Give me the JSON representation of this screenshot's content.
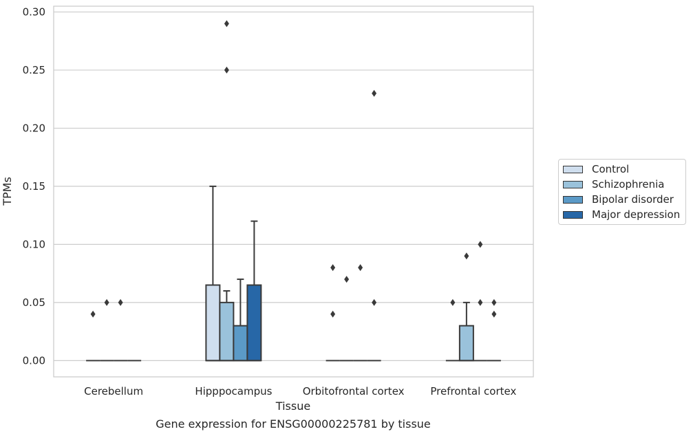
{
  "chart_data": {
    "type": "box",
    "title": "Gene expression for ENSG00000225781 by tissue",
    "xlabel": "Tissue",
    "ylabel": "TPMs",
    "ylim": [
      -0.014,
      0.305
    ],
    "yticks": [
      "0.00",
      "0.05",
      "0.10",
      "0.15",
      "0.20",
      "0.25",
      "0.30"
    ],
    "ytick_values": [
      0,
      0.05,
      0.1,
      0.15,
      0.2,
      0.25,
      0.3
    ],
    "grid": true,
    "legend_position": "right",
    "categories": [
      "Cerebellum",
      "Hipppocampus",
      "Orbitofrontal cortex",
      "Prefrontal cortex"
    ],
    "series": [
      {
        "name": "Control",
        "color": "#cfdeee",
        "boxes": [
          {
            "q1": 0,
            "median": 0,
            "q3": 0,
            "whislo": 0,
            "whishi": 0,
            "fliers": [
              0.04
            ]
          },
          {
            "q1": 0,
            "median": 0,
            "q3": 0.065,
            "whislo": 0,
            "whishi": 0.15,
            "fliers": []
          },
          {
            "q1": 0,
            "median": 0,
            "q3": 0,
            "whislo": 0,
            "whishi": 0,
            "fliers": [
              0.04,
              0.08
            ]
          },
          {
            "q1": 0,
            "median": 0,
            "q3": 0,
            "whislo": 0,
            "whishi": 0,
            "fliers": [
              0.05
            ]
          }
        ]
      },
      {
        "name": "Schizophrenia",
        "color": "#9ac2db",
        "boxes": [
          {
            "q1": 0,
            "median": 0,
            "q3": 0,
            "whislo": 0,
            "whishi": 0,
            "fliers": [
              0.05
            ]
          },
          {
            "q1": 0,
            "median": 0,
            "q3": 0.05,
            "whislo": 0,
            "whishi": 0.06,
            "fliers": [
              0.25,
              0.29
            ]
          },
          {
            "q1": 0,
            "median": 0,
            "q3": 0,
            "whislo": 0,
            "whishi": 0,
            "fliers": [
              0.07
            ]
          },
          {
            "q1": 0,
            "median": 0,
            "q3": 0.03,
            "whislo": 0,
            "whishi": 0.05,
            "fliers": [
              0.09
            ]
          }
        ]
      },
      {
        "name": "Bipolar disorder",
        "color": "#5b9ac7",
        "boxes": [
          {
            "q1": 0,
            "median": 0,
            "q3": 0,
            "whislo": 0,
            "whishi": 0,
            "fliers": [
              0.05
            ]
          },
          {
            "q1": 0,
            "median": 0,
            "q3": 0.03,
            "whislo": 0,
            "whishi": 0.07,
            "fliers": []
          },
          {
            "q1": 0,
            "median": 0,
            "q3": 0,
            "whislo": 0,
            "whishi": 0,
            "fliers": [
              0.08
            ]
          },
          {
            "q1": 0,
            "median": 0,
            "q3": 0,
            "whislo": 0,
            "whishi": 0,
            "fliers": [
              0.05,
              0.1
            ]
          }
        ]
      },
      {
        "name": "Major depression",
        "color": "#2767a7",
        "boxes": [
          {
            "q1": 0,
            "median": 0,
            "q3": 0,
            "whislo": 0,
            "whishi": 0,
            "fliers": []
          },
          {
            "q1": 0,
            "median": 0,
            "q3": 0.065,
            "whislo": 0,
            "whishi": 0.12,
            "fliers": []
          },
          {
            "q1": 0,
            "median": 0,
            "q3": 0,
            "whislo": 0,
            "whishi": 0,
            "fliers": [
              0.05,
              0.23
            ]
          },
          {
            "q1": 0,
            "median": 0,
            "q3": 0,
            "whislo": 0,
            "whishi": 0,
            "fliers": [
              0.04,
              0.05
            ]
          }
        ]
      }
    ]
  }
}
